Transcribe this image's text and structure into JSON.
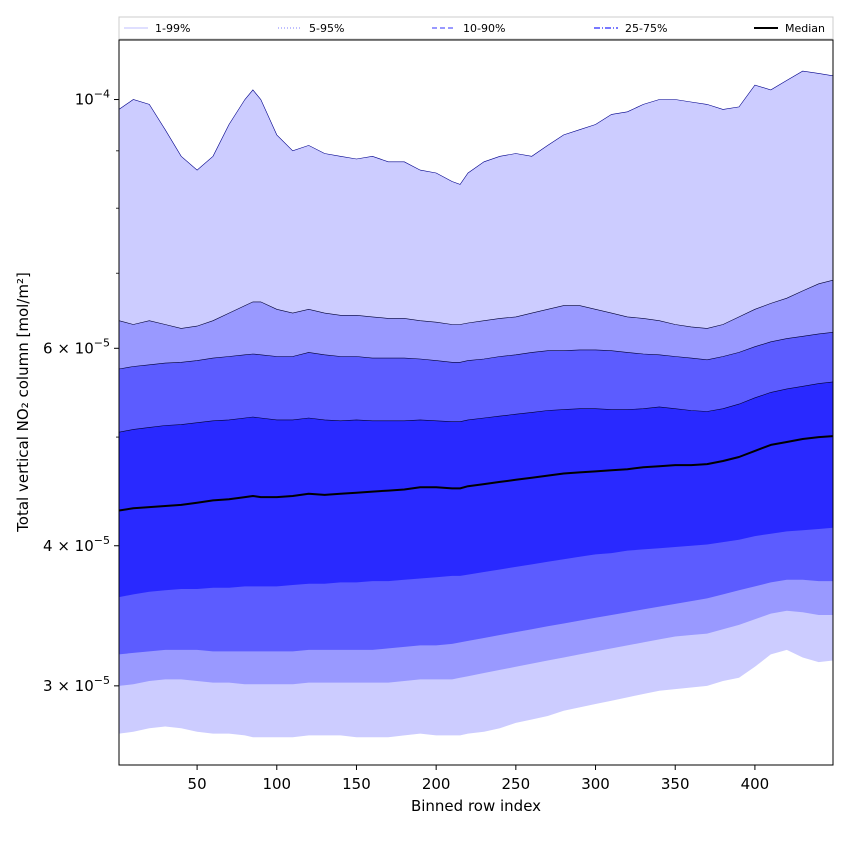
{
  "chart_data": {
    "type": "area",
    "title": "",
    "xlabel": "Binned row index",
    "ylabel": "Total vertical NO₂ column [mol/m²]",
    "x_scale": "linear",
    "y_scale": "log",
    "xlim": [
      1,
      449
    ],
    "ylim": [
      2.55e-05,
      0.000113
    ],
    "x_ticks": [
      50,
      100,
      150,
      200,
      250,
      300,
      350,
      400
    ],
    "x_tick_labels": [
      "50",
      "100",
      "150",
      "200",
      "250",
      "300",
      "350",
      "400"
    ],
    "y_ticks": [
      {
        "value": 3e-05,
        "mantissa": "3",
        "exp": "−5"
      },
      {
        "value": 4e-05,
        "mantissa": "4",
        "exp": "−5"
      },
      {
        "value": 6e-05,
        "mantissa": "6",
        "exp": "−5"
      },
      {
        "value": 0.0001,
        "mantissa": "",
        "exp": "−4"
      }
    ],
    "legend": {
      "placement": "top, above plot (horizontal)",
      "entries": [
        {
          "label": "1-99%",
          "style": "solid",
          "color": "#ccccff"
        },
        {
          "label": "5-95%",
          "style": "dotted",
          "color": "#9999ff"
        },
        {
          "label": "10-90%",
          "style": "dashed",
          "color": "#5c5cff"
        },
        {
          "label": "25-75%",
          "style": "dashdot",
          "color": "#2929ff"
        },
        {
          "label": "Median",
          "style": "solid",
          "color": "#000000"
        }
      ]
    },
    "x": [
      1,
      10,
      20,
      30,
      40,
      50,
      60,
      70,
      80,
      85,
      90,
      100,
      110,
      120,
      130,
      140,
      150,
      160,
      170,
      180,
      190,
      200,
      210,
      215,
      220,
      230,
      240,
      250,
      260,
      270,
      280,
      290,
      300,
      310,
      320,
      330,
      340,
      350,
      360,
      370,
      380,
      390,
      400,
      410,
      420,
      430,
      440,
      449
    ],
    "series": [
      {
        "name": "1-99%",
        "role": "band",
        "color": "#ccccff",
        "lower": [
          2.72e-05,
          2.73e-05,
          2.75e-05,
          2.76e-05,
          2.75e-05,
          2.73e-05,
          2.72e-05,
          2.72e-05,
          2.71e-05,
          2.7e-05,
          2.7e-05,
          2.7e-05,
          2.7e-05,
          2.71e-05,
          2.71e-05,
          2.71e-05,
          2.7e-05,
          2.7e-05,
          2.7e-05,
          2.71e-05,
          2.72e-05,
          2.71e-05,
          2.71e-05,
          2.71e-05,
          2.72e-05,
          2.73e-05,
          2.75e-05,
          2.78e-05,
          2.8e-05,
          2.82e-05,
          2.85e-05,
          2.87e-05,
          2.89e-05,
          2.91e-05,
          2.93e-05,
          2.95e-05,
          2.97e-05,
          2.98e-05,
          2.99e-05,
          3e-05,
          3.03e-05,
          3.05e-05,
          3.12e-05,
          3.2e-05,
          3.23e-05,
          3.18e-05,
          3.15e-05,
          3.16e-05
        ],
        "upper": [
          9.8e-05,
          0.0001,
          9.9e-05,
          9.4e-05,
          8.9e-05,
          8.65e-05,
          8.9e-05,
          9.5e-05,
          0.0001,
          0.000102,
          0.0001,
          9.3e-05,
          9e-05,
          9.1e-05,
          8.95e-05,
          8.9e-05,
          8.85e-05,
          8.9e-05,
          8.8e-05,
          8.8e-05,
          8.65e-05,
          8.6e-05,
          8.45e-05,
          8.4e-05,
          8.6e-05,
          8.8e-05,
          8.9e-05,
          8.95e-05,
          8.9e-05,
          9.1e-05,
          9.3e-05,
          9.4e-05,
          9.5e-05,
          9.7e-05,
          9.75e-05,
          9.9e-05,
          0.0001,
          0.0001,
          9.95e-05,
          9.9e-05,
          9.8e-05,
          9.85e-05,
          0.000103,
          0.000102,
          0.000104,
          0.000106,
          0.0001055,
          0.000105
        ]
      },
      {
        "name": "5-95%",
        "role": "band",
        "color": "#9999ff",
        "lower": [
          3e-05,
          3.01e-05,
          3.03e-05,
          3.04e-05,
          3.04e-05,
          3.03e-05,
          3.02e-05,
          3.02e-05,
          3.01e-05,
          3.01e-05,
          3.01e-05,
          3.01e-05,
          3.01e-05,
          3.02e-05,
          3.02e-05,
          3.02e-05,
          3.02e-05,
          3.02e-05,
          3.02e-05,
          3.03e-05,
          3.04e-05,
          3.04e-05,
          3.04e-05,
          3.05e-05,
          3.06e-05,
          3.08e-05,
          3.1e-05,
          3.12e-05,
          3.14e-05,
          3.16e-05,
          3.18e-05,
          3.2e-05,
          3.22e-05,
          3.24e-05,
          3.26e-05,
          3.28e-05,
          3.3e-05,
          3.32e-05,
          3.33e-05,
          3.34e-05,
          3.37e-05,
          3.4e-05,
          3.44e-05,
          3.48e-05,
          3.5e-05,
          3.49e-05,
          3.47e-05,
          3.47e-05
        ],
        "upper": [
          6.35e-05,
          6.3e-05,
          6.35e-05,
          6.3e-05,
          6.25e-05,
          6.28e-05,
          6.35e-05,
          6.45e-05,
          6.55e-05,
          6.6e-05,
          6.6e-05,
          6.5e-05,
          6.45e-05,
          6.5e-05,
          6.45e-05,
          6.42e-05,
          6.42e-05,
          6.4e-05,
          6.38e-05,
          6.38e-05,
          6.35e-05,
          6.33e-05,
          6.3e-05,
          6.3e-05,
          6.32e-05,
          6.35e-05,
          6.38e-05,
          6.4e-05,
          6.45e-05,
          6.5e-05,
          6.55e-05,
          6.55e-05,
          6.5e-05,
          6.45e-05,
          6.4e-05,
          6.38e-05,
          6.35e-05,
          6.3e-05,
          6.27e-05,
          6.25e-05,
          6.3e-05,
          6.4e-05,
          6.5e-05,
          6.58e-05,
          6.65e-05,
          6.75e-05,
          6.85e-05,
          6.9e-05
        ]
      },
      {
        "name": "10-90%",
        "role": "band",
        "color": "#5c5cff",
        "lower": [
          3.2e-05,
          3.21e-05,
          3.22e-05,
          3.23e-05,
          3.23e-05,
          3.23e-05,
          3.22e-05,
          3.22e-05,
          3.22e-05,
          3.22e-05,
          3.22e-05,
          3.22e-05,
          3.22e-05,
          3.23e-05,
          3.23e-05,
          3.23e-05,
          3.23e-05,
          3.23e-05,
          3.24e-05,
          3.25e-05,
          3.26e-05,
          3.26e-05,
          3.27e-05,
          3.28e-05,
          3.29e-05,
          3.31e-05,
          3.33e-05,
          3.35e-05,
          3.37e-05,
          3.39e-05,
          3.41e-05,
          3.43e-05,
          3.45e-05,
          3.47e-05,
          3.49e-05,
          3.51e-05,
          3.53e-05,
          3.55e-05,
          3.57e-05,
          3.59e-05,
          3.62e-05,
          3.65e-05,
          3.68e-05,
          3.71e-05,
          3.73e-05,
          3.73e-05,
          3.72e-05,
          3.72e-05
        ],
        "upper": [
          5.75e-05,
          5.78e-05,
          5.8e-05,
          5.82e-05,
          5.83e-05,
          5.85e-05,
          5.88e-05,
          5.9e-05,
          5.92e-05,
          5.93e-05,
          5.92e-05,
          5.9e-05,
          5.9e-05,
          5.95e-05,
          5.92e-05,
          5.9e-05,
          5.9e-05,
          5.88e-05,
          5.88e-05,
          5.88e-05,
          5.87e-05,
          5.85e-05,
          5.83e-05,
          5.83e-05,
          5.85e-05,
          5.87e-05,
          5.9e-05,
          5.92e-05,
          5.95e-05,
          5.97e-05,
          5.97e-05,
          5.98e-05,
          5.98e-05,
          5.97e-05,
          5.95e-05,
          5.93e-05,
          5.92e-05,
          5.9e-05,
          5.88e-05,
          5.86e-05,
          5.9e-05,
          5.95e-05,
          6.02e-05,
          6.08e-05,
          6.12e-05,
          6.15e-05,
          6.18e-05,
          6.2e-05
        ]
      },
      {
        "name": "25-75%",
        "role": "band",
        "color": "#2929ff",
        "lower": [
          3.6e-05,
          3.62e-05,
          3.64e-05,
          3.65e-05,
          3.66e-05,
          3.66e-05,
          3.67e-05,
          3.67e-05,
          3.68e-05,
          3.68e-05,
          3.68e-05,
          3.68e-05,
          3.69e-05,
          3.7e-05,
          3.7e-05,
          3.71e-05,
          3.71e-05,
          3.72e-05,
          3.72e-05,
          3.73e-05,
          3.74e-05,
          3.75e-05,
          3.76e-05,
          3.76e-05,
          3.77e-05,
          3.79e-05,
          3.81e-05,
          3.83e-05,
          3.85e-05,
          3.87e-05,
          3.89e-05,
          3.91e-05,
          3.93e-05,
          3.94e-05,
          3.96e-05,
          3.97e-05,
          3.98e-05,
          3.99e-05,
          4e-05,
          4.01e-05,
          4.03e-05,
          4.05e-05,
          4.08e-05,
          4.1e-05,
          4.12e-05,
          4.13e-05,
          4.14e-05,
          4.15e-05
        ],
        "upper": [
          5.05e-05,
          5.08e-05,
          5.1e-05,
          5.12e-05,
          5.13e-05,
          5.15e-05,
          5.17e-05,
          5.18e-05,
          5.2e-05,
          5.21e-05,
          5.2e-05,
          5.18e-05,
          5.18e-05,
          5.2e-05,
          5.18e-05,
          5.17e-05,
          5.18e-05,
          5.17e-05,
          5.17e-05,
          5.17e-05,
          5.18e-05,
          5.17e-05,
          5.16e-05,
          5.16e-05,
          5.18e-05,
          5.2e-05,
          5.22e-05,
          5.24e-05,
          5.26e-05,
          5.28e-05,
          5.29e-05,
          5.3e-05,
          5.3e-05,
          5.29e-05,
          5.29e-05,
          5.3e-05,
          5.32e-05,
          5.3e-05,
          5.28e-05,
          5.27e-05,
          5.3e-05,
          5.35e-05,
          5.42e-05,
          5.48e-05,
          5.52e-05,
          5.55e-05,
          5.58e-05,
          5.6e-05
        ]
      },
      {
        "name": "Median",
        "role": "line",
        "color": "#000000",
        "values": [
          4.3e-05,
          4.32e-05,
          4.33e-05,
          4.34e-05,
          4.35e-05,
          4.37e-05,
          4.39e-05,
          4.4e-05,
          4.42e-05,
          4.43e-05,
          4.42e-05,
          4.42e-05,
          4.43e-05,
          4.45e-05,
          4.44e-05,
          4.45e-05,
          4.46e-05,
          4.47e-05,
          4.48e-05,
          4.49e-05,
          4.51e-05,
          4.51e-05,
          4.5e-05,
          4.5e-05,
          4.52e-05,
          4.54e-05,
          4.56e-05,
          4.58e-05,
          4.6e-05,
          4.62e-05,
          4.64e-05,
          4.65e-05,
          4.66e-05,
          4.67e-05,
          4.68e-05,
          4.7e-05,
          4.71e-05,
          4.72e-05,
          4.72e-05,
          4.73e-05,
          4.76e-05,
          4.8e-05,
          4.86e-05,
          4.92e-05,
          4.95e-05,
          4.98e-05,
          5e-05,
          5.01e-05
        ]
      }
    ]
  }
}
